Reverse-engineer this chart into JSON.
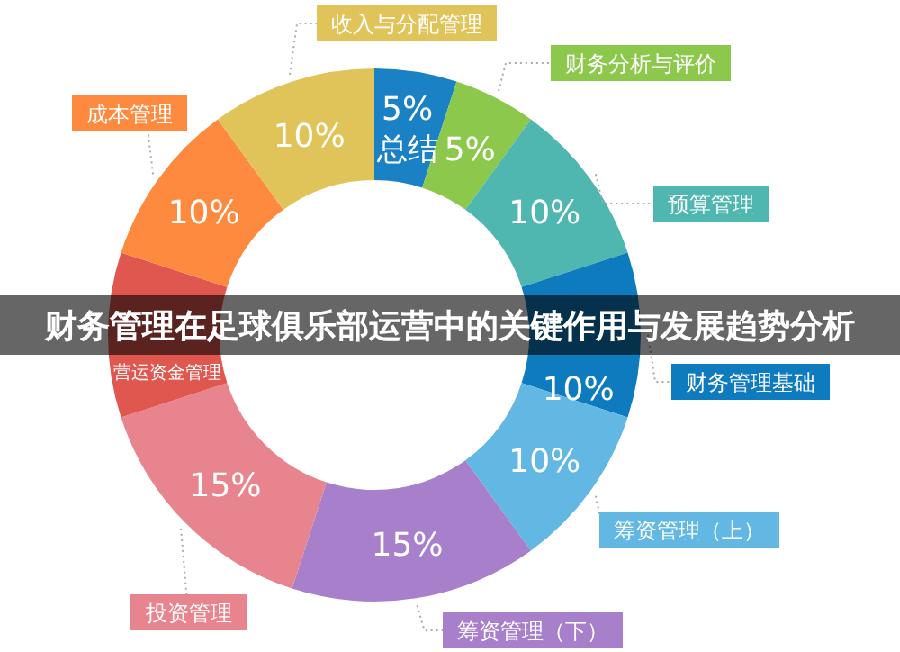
{
  "chart_data": {
    "type": "donut",
    "title": "财务管理在足球俱乐部运营中的关键作用与发展趋势分析",
    "categories": [
      "总结",
      "财务分析与评价",
      "预算管理",
      "财务管理基础",
      "筹资管理（上）",
      "筹资管理（下）",
      "投资管理",
      "营运资金管理",
      "成本管理",
      "收入与分配管理"
    ],
    "values": [
      5,
      5,
      10,
      10,
      10,
      15,
      15,
      10,
      10,
      10
    ],
    "value_labels": [
      "5%",
      "5%",
      "10%",
      "10%",
      "10%",
      "15%",
      "15%",
      null,
      "10%",
      "10%"
    ],
    "colors": [
      "#1a82c4",
      "#8cc84b",
      "#50b7b0",
      "#0f7bbf",
      "#62b8e2",
      "#a87fcb",
      "#e8848e",
      "#e0574f",
      "#fd8a3e",
      "#e0c45a"
    ]
  }
}
